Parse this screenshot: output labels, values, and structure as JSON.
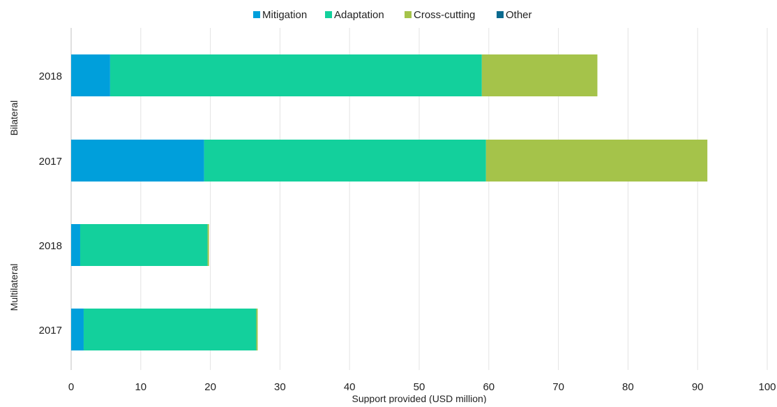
{
  "chart_data": {
    "type": "bar",
    "orientation": "horizontal",
    "stacked": true,
    "title": "",
    "xlabel": "Support provided (USD million)",
    "ylabel": "",
    "xlim": [
      0,
      100
    ],
    "xticks": [
      0,
      10,
      20,
      30,
      40,
      50,
      60,
      70,
      80,
      90,
      100
    ],
    "grid": "vertical",
    "legend_position": "top",
    "groups": [
      {
        "label": "Bilateral",
        "categories": [
          "2018",
          "2017"
        ]
      },
      {
        "label": "Multilateral",
        "categories": [
          "2018",
          "2017"
        ]
      }
    ],
    "categories": [
      "Bilateral 2018",
      "Bilateral 2017",
      "Multilateral 2018",
      "Multilateral 2017"
    ],
    "category_labels": [
      "2018",
      "2017",
      "2018",
      "2017"
    ],
    "series": [
      {
        "name": "Mitigation",
        "color": "#009fdb",
        "values": [
          5.6,
          19.1,
          1.3,
          1.8
        ]
      },
      {
        "name": "Adaptation",
        "color": "#13d09c",
        "values": [
          53.4,
          40.5,
          18.3,
          24.8
        ]
      },
      {
        "name": "Cross-cutting",
        "color": "#a5c34a",
        "values": [
          16.6,
          31.8,
          0.2,
          0.2
        ]
      },
      {
        "name": "Other",
        "color": "#0a6a8f",
        "values": [
          0,
          0,
          0,
          0
        ]
      }
    ]
  }
}
